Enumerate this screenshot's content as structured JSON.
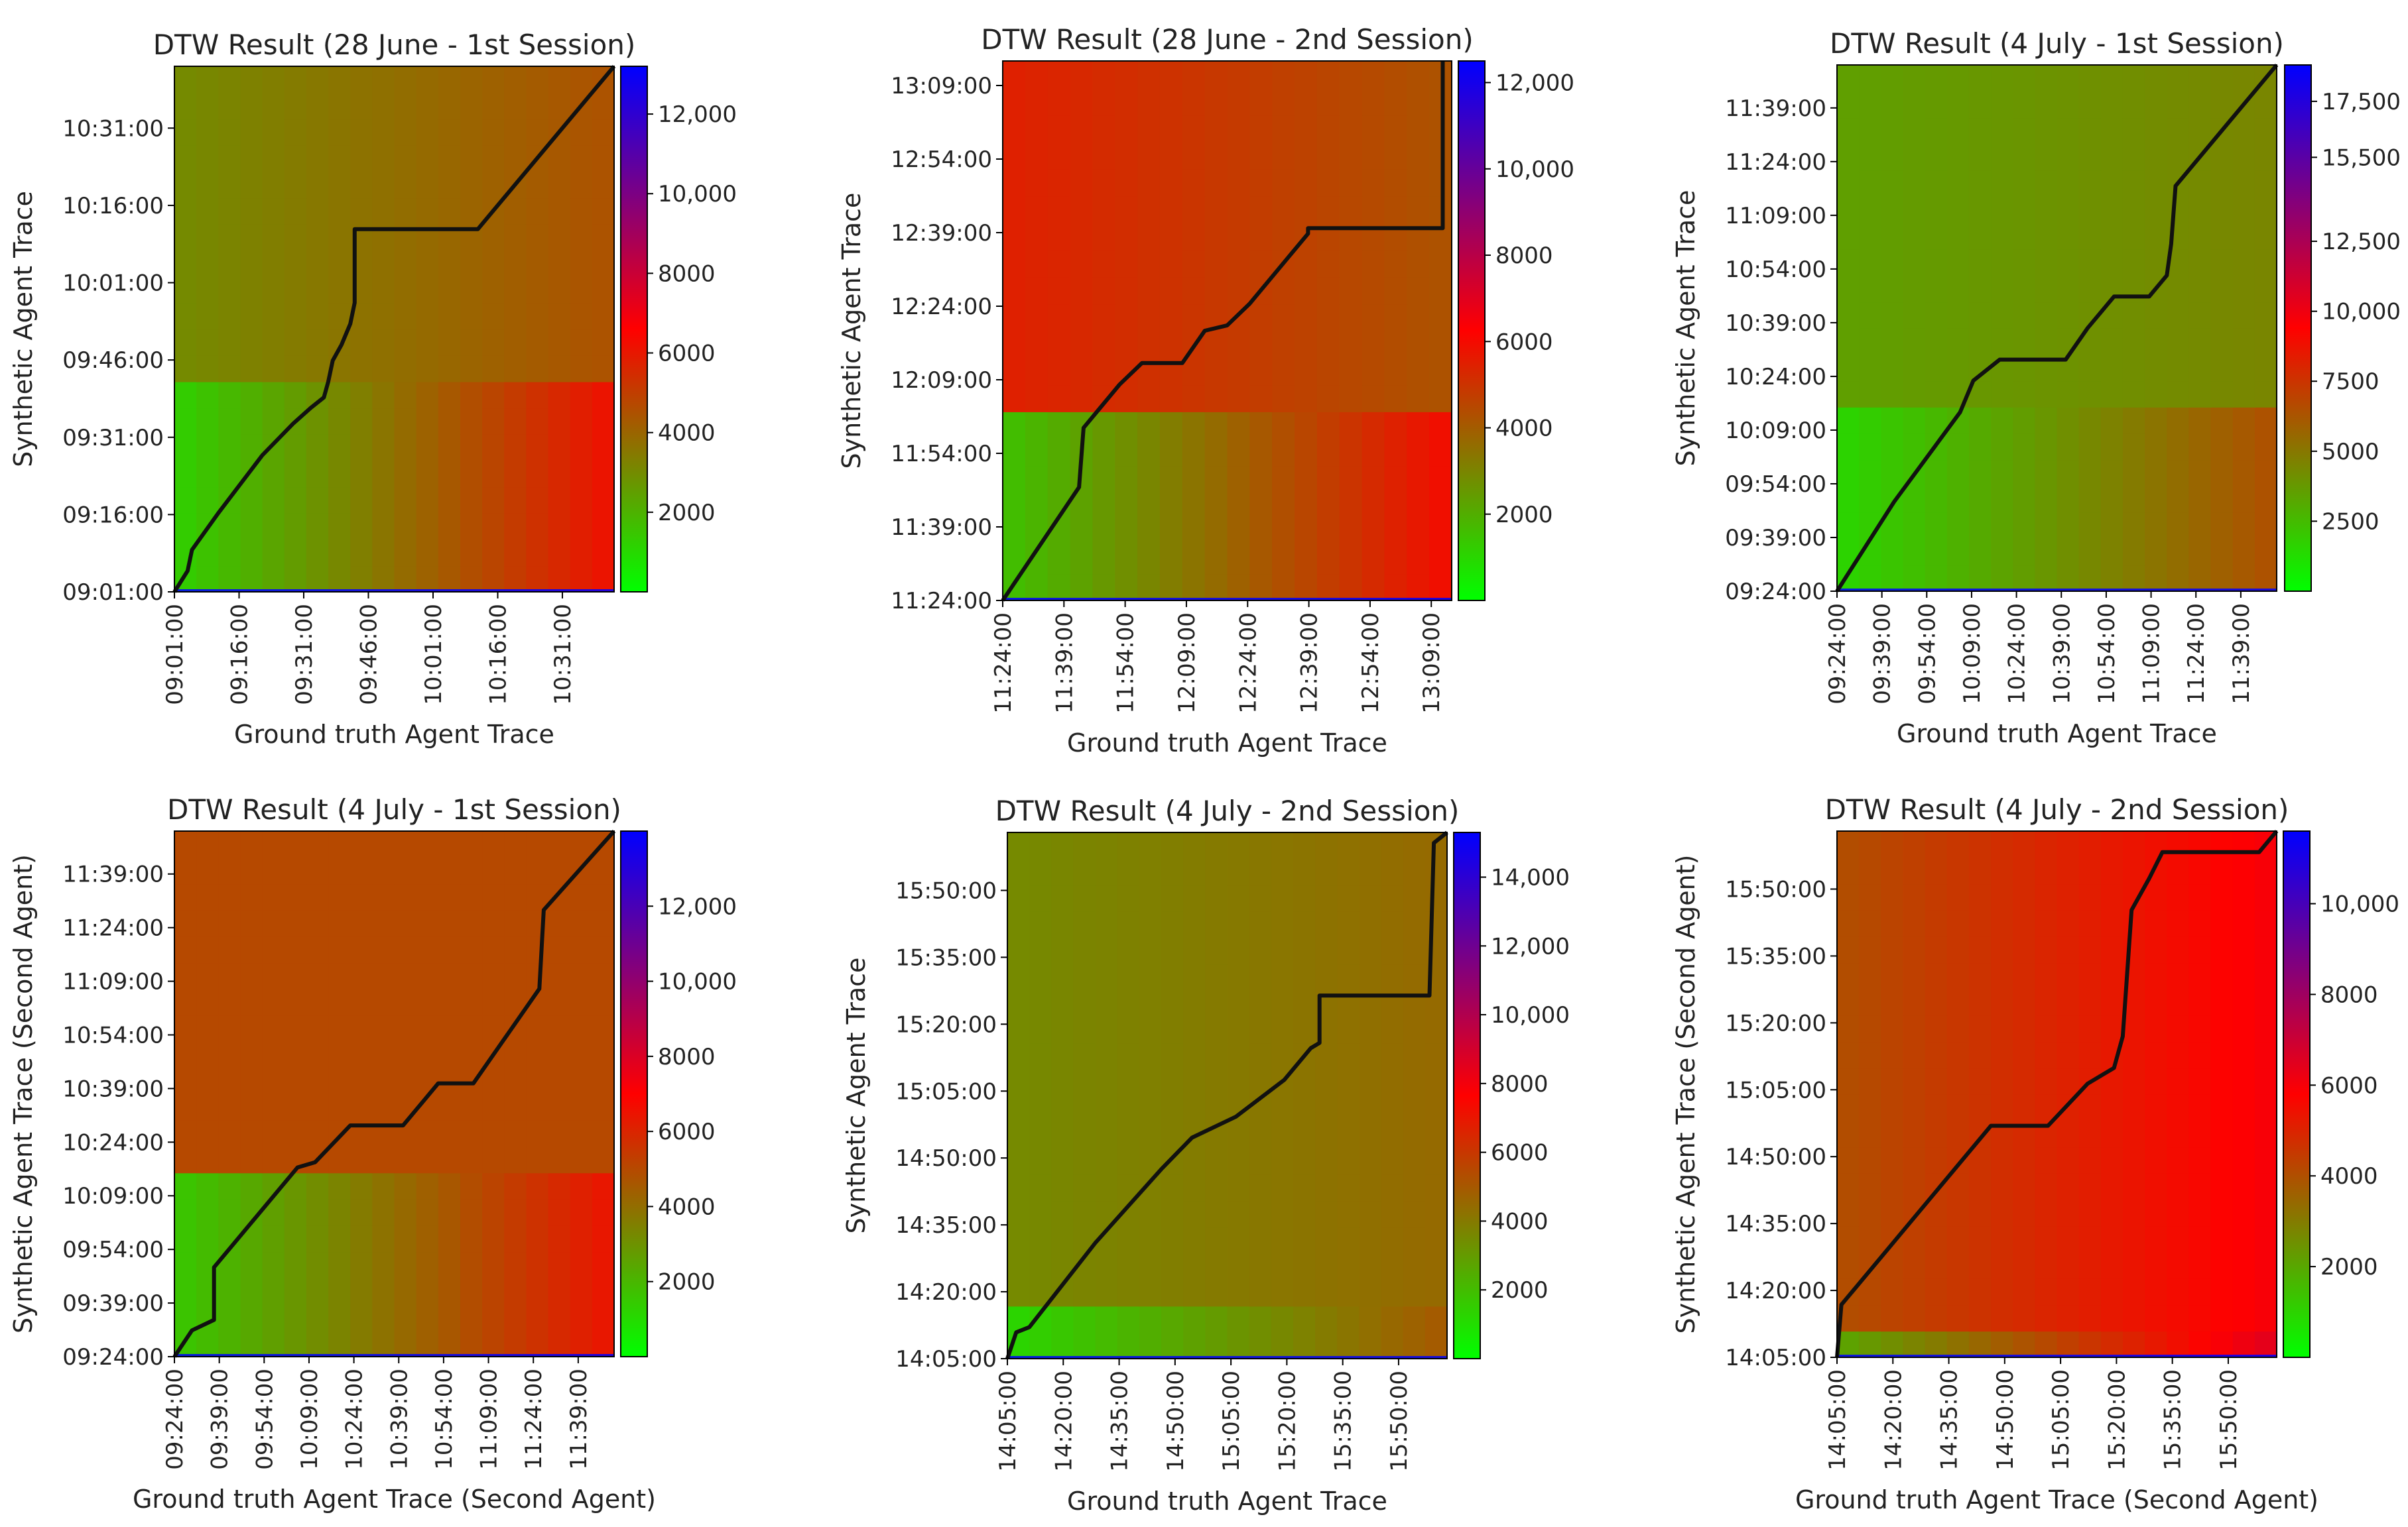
{
  "chart_data": [
    {
      "type": "heatmap",
      "title": "DTW Result (28 June - 1st Session)",
      "xlabel": "Ground truth Agent Trace",
      "ylabel": "Synthetic Agent Trace",
      "x_ticks": [
        "09:01:00",
        "09:16:00",
        "09:31:00",
        "09:46:00",
        "10:01:00",
        "10:16:00",
        "10:31:00"
      ],
      "y_ticks": [
        "09:01:00",
        "09:16:00",
        "09:31:00",
        "09:46:00",
        "10:01:00",
        "10:16:00",
        "10:31:00"
      ],
      "time_range_minutes": 102,
      "colorbar_ticks": [
        2000,
        4000,
        6000,
        8000,
        10000,
        12000
      ],
      "colorbar_labels": [
        "2000",
        "4000",
        "6000",
        "8000",
        "10,000",
        "12,000"
      ],
      "colorbar_range": [
        0,
        13200
      ],
      "cost_levels": {
        "left_lower": 1200,
        "right_lower": 6200,
        "left_upper": 3000,
        "right_upper": 4500,
        "split_y": 0.39
      },
      "warping_path": [
        [
          0,
          0
        ],
        [
          0.03,
          0.04
        ],
        [
          0.04,
          0.08
        ],
        [
          0.1,
          0.15
        ],
        [
          0.2,
          0.26
        ],
        [
          0.27,
          0.32
        ],
        [
          0.31,
          0.35
        ],
        [
          0.34,
          0.37
        ],
        [
          0.35,
          0.4
        ],
        [
          0.36,
          0.44
        ],
        [
          0.38,
          0.47
        ],
        [
          0.4,
          0.51
        ],
        [
          0.41,
          0.55
        ],
        [
          0.41,
          0.69
        ],
        [
          0.69,
          0.69
        ],
        [
          1,
          1
        ]
      ],
      "colors": {
        "low": "#00ff00",
        "mid": "#ff0000",
        "high": "#0000ff",
        "path": "#111111"
      }
    },
    {
      "type": "heatmap",
      "title": "DTW Result (28 June - 2nd Session)",
      "xlabel": "Ground truth Agent Trace",
      "ylabel": "Synthetic Agent Trace",
      "x_ticks": [
        "11:24:00",
        "11:39:00",
        "11:54:00",
        "12:09:00",
        "12:24:00",
        "12:39:00",
        "12:54:00",
        "13:09:00"
      ],
      "y_ticks": [
        "11:24:00",
        "11:39:00",
        "11:54:00",
        "12:09:00",
        "12:24:00",
        "12:39:00",
        "12:54:00",
        "13:09:00"
      ],
      "time_range_minutes": 110,
      "colorbar_ticks": [
        2000,
        4000,
        6000,
        8000,
        10000,
        12000
      ],
      "colorbar_labels": [
        "2000",
        "4000",
        "6000",
        "8000",
        "10,000",
        "12,000"
      ],
      "colorbar_range": [
        0,
        12500
      ],
      "cost_levels": {
        "left_lower": 1500,
        "right_lower": 6000,
        "left_upper": 5500,
        "right_upper": 4200,
        "split_y": 0.36
      },
      "warping_path": [
        [
          0,
          0
        ],
        [
          0.17,
          0.21
        ],
        [
          0.18,
          0.32
        ],
        [
          0.21,
          0.35
        ],
        [
          0.26,
          0.4
        ],
        [
          0.31,
          0.44
        ],
        [
          0.4,
          0.44
        ],
        [
          0.45,
          0.5
        ],
        [
          0.5,
          0.51
        ],
        [
          0.55,
          0.55
        ],
        [
          0.64,
          0.64
        ],
        [
          0.68,
          0.68
        ],
        [
          0.68,
          0.69
        ],
        [
          0.98,
          0.69
        ],
        [
          0.98,
          1
        ]
      ],
      "colors": {
        "low": "#00ff00",
        "mid": "#ff0000",
        "high": "#0000ff",
        "path": "#111111"
      }
    },
    {
      "type": "heatmap",
      "title": "DTW Result (4 July - 1st Session)",
      "xlabel": "Ground truth Agent Trace",
      "ylabel": "Synthetic Agent Trace",
      "x_ticks": [
        "09:24:00",
        "09:39:00",
        "09:54:00",
        "10:09:00",
        "10:24:00",
        "10:39:00",
        "10:54:00",
        "11:09:00",
        "11:24:00",
        "11:39:00"
      ],
      "y_ticks": [
        "09:24:00",
        "09:39:00",
        "09:54:00",
        "10:09:00",
        "10:24:00",
        "10:39:00",
        "10:54:00",
        "11:09:00",
        "11:24:00",
        "11:39:00"
      ],
      "time_range_minutes": 147,
      "colorbar_ticks": [
        2500,
        5000,
        7500,
        10000,
        12500,
        15500,
        17500
      ],
      "colorbar_labels": [
        "2500",
        "5000",
        "7500",
        "10,000",
        "12,500",
        "15,500",
        "17,500"
      ],
      "colorbar_range": [
        0,
        18800
      ],
      "cost_levels": {
        "left_lower": 1500,
        "right_lower": 6500,
        "left_upper": 3500,
        "right_upper": 4500,
        "split_y": 0.35
      },
      "warping_path": [
        [
          0,
          0
        ],
        [
          0.13,
          0.17
        ],
        [
          0.28,
          0.34
        ],
        [
          0.31,
          0.4
        ],
        [
          0.37,
          0.44
        ],
        [
          0.52,
          0.44
        ],
        [
          0.57,
          0.5
        ],
        [
          0.63,
          0.56
        ],
        [
          0.71,
          0.56
        ],
        [
          0.75,
          0.6
        ],
        [
          0.76,
          0.66
        ],
        [
          0.77,
          0.77
        ],
        [
          1,
          1
        ]
      ],
      "colors": {
        "low": "#00ff00",
        "mid": "#ff0000",
        "high": "#0000ff",
        "path": "#111111"
      }
    },
    {
      "type": "heatmap",
      "title": "DTW Result (4 July - 1st Session)",
      "xlabel": "Ground truth Agent Trace (Second Agent)",
      "ylabel": "Synthetic Agent Trace (Second Agent)",
      "x_ticks": [
        "09:24:00",
        "09:39:00",
        "09:54:00",
        "10:09:00",
        "10:24:00",
        "10:39:00",
        "10:54:00",
        "11:09:00",
        "11:24:00",
        "11:39:00"
      ],
      "y_ticks": [
        "09:24:00",
        "09:39:00",
        "09:54:00",
        "10:09:00",
        "10:24:00",
        "10:39:00",
        "10:54:00",
        "11:09:00",
        "11:24:00",
        "11:39:00"
      ],
      "time_range_minutes": 147,
      "colorbar_ticks": [
        2000,
        4000,
        6000,
        8000,
        10000,
        12000
      ],
      "colorbar_labels": [
        "2000",
        "4000",
        "6000",
        "8000",
        "10,000",
        "12,000"
      ],
      "colorbar_range": [
        0,
        14000
      ],
      "cost_levels": {
        "left_lower": 1500,
        "right_lower": 6500,
        "left_upper": 5000,
        "right_upper": 5000,
        "split_y": 0.36
      },
      "warping_path": [
        [
          0,
          0
        ],
        [
          0.04,
          0.05
        ],
        [
          0.09,
          0.07
        ],
        [
          0.09,
          0.17
        ],
        [
          0.28,
          0.36
        ],
        [
          0.32,
          0.37
        ],
        [
          0.4,
          0.44
        ],
        [
          0.52,
          0.44
        ],
        [
          0.6,
          0.52
        ],
        [
          0.68,
          0.52
        ],
        [
          0.83,
          0.7
        ],
        [
          0.84,
          0.85
        ],
        [
          1,
          1
        ]
      ],
      "colors": {
        "low": "#00ff00",
        "mid": "#ff0000",
        "high": "#0000ff",
        "path": "#111111"
      }
    },
    {
      "type": "heatmap",
      "title": "DTW Result (4 July - 2nd Session)",
      "xlabel": "Ground truth Agent Trace",
      "ylabel": "Synthetic Agent Trace",
      "x_ticks": [
        "14:05:00",
        "14:20:00",
        "14:35:00",
        "14:50:00",
        "15:05:00",
        "15:20:00",
        "15:35:00",
        "15:50:00"
      ],
      "y_ticks": [
        "14:05:00",
        "14:20:00",
        "14:35:00",
        "14:50:00",
        "15:05:00",
        "15:20:00",
        "15:35:00",
        "15:50:00"
      ],
      "time_range_minutes": 118,
      "colorbar_ticks": [
        2000,
        4000,
        6000,
        8000,
        10000,
        12000,
        14000
      ],
      "colorbar_labels": [
        "2000",
        "4000",
        "6000",
        "8000",
        "10,000",
        "12,000",
        "14,000"
      ],
      "colorbar_range": [
        0,
        15300
      ],
      "cost_levels": {
        "left_lower": 1200,
        "right_lower": 5000,
        "left_upper": 3500,
        "right_upper": 4500,
        "split_y": 0.08
      },
      "warping_path": [
        [
          0,
          0
        ],
        [
          0.02,
          0.05
        ],
        [
          0.05,
          0.06
        ],
        [
          0.2,
          0.22
        ],
        [
          0.35,
          0.36
        ],
        [
          0.42,
          0.42
        ],
        [
          0.52,
          0.46
        ],
        [
          0.63,
          0.53
        ],
        [
          0.69,
          0.59
        ],
        [
          0.71,
          0.6
        ],
        [
          0.71,
          0.69
        ],
        [
          0.96,
          0.69
        ],
        [
          0.97,
          0.98
        ],
        [
          1,
          1
        ]
      ],
      "colors": {
        "low": "#00ff00",
        "mid": "#ff0000",
        "high": "#0000ff",
        "path": "#111111"
      }
    },
    {
      "type": "heatmap",
      "title": "DTW Result (4 July - 2nd Session)",
      "xlabel": "Ground truth Agent Trace (Second Agent)",
      "ylabel": "Synthetic Agent Trace (Second Agent)",
      "x_ticks": [
        "14:05:00",
        "14:20:00",
        "14:35:00",
        "14:50:00",
        "15:05:00",
        "15:20:00",
        "15:35:00",
        "15:50:00"
      ],
      "y_ticks": [
        "14:05:00",
        "14:20:00",
        "14:35:00",
        "14:50:00",
        "15:05:00",
        "15:20:00",
        "15:35:00",
        "15:50:00"
      ],
      "time_range_minutes": 118,
      "colorbar_ticks": [
        2000,
        4000,
        6000,
        8000,
        10000
      ],
      "colorbar_labels": [
        "2000",
        "4000",
        "6000",
        "8000",
        "10,000"
      ],
      "colorbar_range": [
        0,
        11600
      ],
      "cost_levels": {
        "left_lower": 2000,
        "right_lower": 6500,
        "left_upper": 4000,
        "right_upper": 6000,
        "split_y": 0.07
      },
      "warping_path": [
        [
          0,
          0
        ],
        [
          0.01,
          0.1
        ],
        [
          0.35,
          0.44
        ],
        [
          0.48,
          0.44
        ],
        [
          0.57,
          0.52
        ],
        [
          0.63,
          0.55
        ],
        [
          0.65,
          0.61
        ],
        [
          0.67,
          0.85
        ],
        [
          0.71,
          0.91
        ],
        [
          0.74,
          0.96
        ],
        [
          0.96,
          0.96
        ],
        [
          1,
          1
        ]
      ],
      "colors": {
        "low": "#00ff00",
        "mid": "#ff0000",
        "high": "#0000ff",
        "path": "#111111"
      }
    }
  ]
}
